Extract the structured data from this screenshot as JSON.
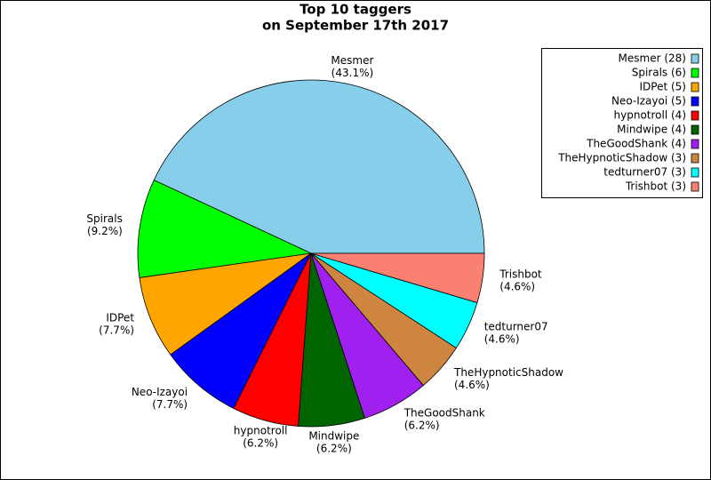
{
  "chart_data": {
    "type": "pie",
    "title": [
      "Top 10 taggers",
      "on September 17th 2017"
    ],
    "categories": [
      "Mesmer",
      "Spirals",
      "IDPet",
      "Neo-Izayoi",
      "hypnotroll",
      "Mindwipe",
      "TheGoodShank",
      "TheHypnoticShadow",
      "tedturner07",
      "Trishbot"
    ],
    "values": [
      43.1,
      9.2,
      7.7,
      7.7,
      6.2,
      6.2,
      6.2,
      4.6,
      4.6,
      4.6
    ],
    "value_labels": [
      "(43.1%)",
      "(9.2%)",
      "(7.7%)",
      "(7.7%)",
      "(6.2%)",
      "(6.2%)",
      "(6.2%)",
      "(4.6%)",
      "(4.6%)",
      "(4.6%)"
    ],
    "colors": [
      "#87ceeb",
      "#00ff00",
      "#ffa500",
      "#0000ff",
      "#ff0000",
      "#006400",
      "#a020f0",
      "#cd853f",
      "#00ffff",
      "#fa8072"
    ],
    "legend_labels": [
      "Mesmer (28)",
      "Spirals (6)",
      "IDPet (5)",
      "Neo-Izayoi (5)",
      "hypnotroll (4)",
      "Mindwipe (4)",
      "TheGoodShank (4)",
      "TheHypnoticShadow (3)",
      "tedturner07 (3)",
      "Trishbot (3)"
    ],
    "legend": "upper right"
  }
}
